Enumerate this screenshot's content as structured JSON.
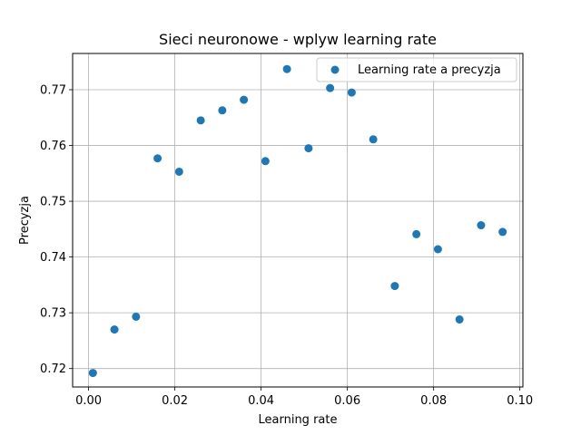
{
  "chart_data": {
    "type": "scatter",
    "title": "Sieci neuronowe - wplyw learning rate",
    "xlabel": "Learning rate",
    "ylabel": "Precyzja",
    "xlim": [
      -0.0037,
      0.1007
    ],
    "ylim": [
      0.7167,
      0.7765
    ],
    "xticks": [
      0.0,
      0.02,
      0.04,
      0.06,
      0.08,
      0.1
    ],
    "xtick_labels": [
      "0.00",
      "0.02",
      "0.04",
      "0.06",
      "0.08",
      "0.10"
    ],
    "yticks": [
      0.72,
      0.73,
      0.74,
      0.75,
      0.76,
      0.77
    ],
    "ytick_labels": [
      "0.72",
      "0.73",
      "0.74",
      "0.75",
      "0.76",
      "0.77"
    ],
    "grid": true,
    "legend_position": "upper right",
    "series": [
      {
        "name": "Learning rate a precyzja",
        "color": "#1f77b4",
        "points": [
          {
            "x": 0.001,
            "y": 0.7192
          },
          {
            "x": 0.006,
            "y": 0.727
          },
          {
            "x": 0.011,
            "y": 0.7293
          },
          {
            "x": 0.016,
            "y": 0.7577
          },
          {
            "x": 0.021,
            "y": 0.7553
          },
          {
            "x": 0.026,
            "y": 0.7645
          },
          {
            "x": 0.031,
            "y": 0.7663
          },
          {
            "x": 0.036,
            "y": 0.7682
          },
          {
            "x": 0.041,
            "y": 0.7572
          },
          {
            "x": 0.046,
            "y": 0.7737
          },
          {
            "x": 0.051,
            "y": 0.7595
          },
          {
            "x": 0.056,
            "y": 0.7703
          },
          {
            "x": 0.061,
            "y": 0.7695
          },
          {
            "x": 0.066,
            "y": 0.7611
          },
          {
            "x": 0.071,
            "y": 0.7348
          },
          {
            "x": 0.076,
            "y": 0.7441
          },
          {
            "x": 0.081,
            "y": 0.7414
          },
          {
            "x": 0.086,
            "y": 0.7288
          },
          {
            "x": 0.091,
            "y": 0.7457
          },
          {
            "x": 0.096,
            "y": 0.7445
          }
        ]
      }
    ]
  }
}
